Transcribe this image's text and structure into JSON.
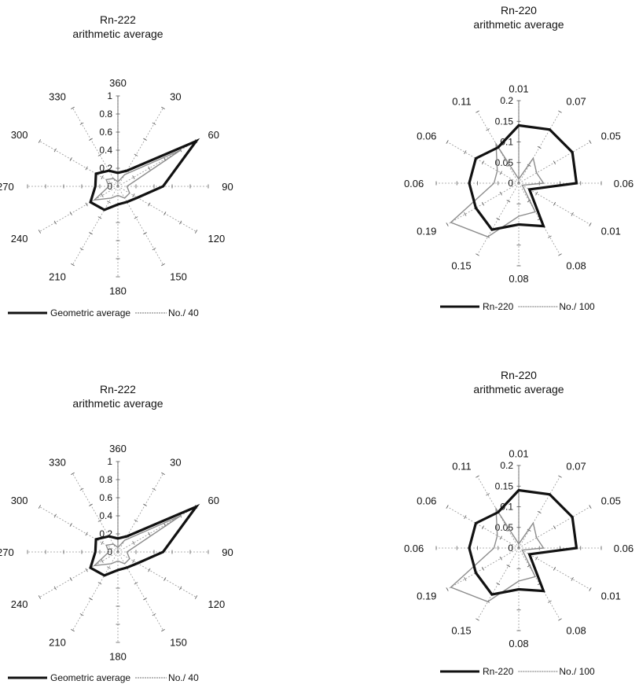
{
  "colors": {
    "primary_series": "#111111",
    "secondary_series": "#8c8c8c",
    "spokes": "#9a9a9a"
  },
  "chart_data": [
    {
      "type": "radar",
      "title_line1": "Rn-222",
      "title_line2": "arithmetic average",
      "categories": [
        "360",
        "30",
        "60",
        "90",
        "120",
        "150",
        "180",
        "210",
        "240",
        "270",
        "300",
        "330"
      ],
      "radial_ticks": [
        "0",
        "0.2",
        "0.4",
        "0.6",
        "0.8",
        "1"
      ],
      "rlim": [
        0,
        1
      ],
      "grid": false,
      "legend_position": "bottom",
      "series": [
        {
          "name": "Geometric average",
          "values": [
            0.15,
            0.2,
            1.0,
            0.5,
            0.25,
            0.2,
            0.2,
            0.3,
            0.35,
            0.25,
            0.28,
            0.2
          ]
        },
        {
          "name": "No./ 40",
          "values": [
            0.05,
            0.15,
            0.8,
            0.1,
            0.15,
            0.15,
            0.1,
            0.15,
            0.3,
            0.1,
            0.15,
            0.1
          ]
        }
      ]
    },
    {
      "type": "radar",
      "title_line1": "Rn-220",
      "title_line2": "arithmetic average",
      "categories": [
        "0.01",
        "0.07",
        "0.05",
        "0.06",
        "0.01",
        "0.08",
        "0.08",
        "0.15",
        "0.19",
        "0.06",
        "0.06",
        "0.11"
      ],
      "radial_ticks": [
        "0",
        "0.05",
        "0.1",
        "0.15",
        "0.2"
      ],
      "rlim": [
        0,
        0.2
      ],
      "grid": false,
      "legend_position": "bottom",
      "series": [
        {
          "name": "Rn-220",
          "values": [
            0.14,
            0.15,
            0.15,
            0.14,
            0.03,
            0.12,
            0.1,
            0.13,
            0.12,
            0.12,
            0.12,
            0.1
          ]
        },
        {
          "name": "No./ 100",
          "values": [
            0.01,
            0.07,
            0.05,
            0.06,
            0.01,
            0.08,
            0.08,
            0.15,
            0.19,
            0.06,
            0.06,
            0.11
          ]
        }
      ]
    },
    {
      "type": "radar",
      "title_line1": "Rn-222",
      "title_line2": "arithmetic average",
      "categories": [
        "360",
        "30",
        "60",
        "90",
        "120",
        "150",
        "180",
        "210",
        "240",
        "270",
        "300",
        "330"
      ],
      "radial_ticks": [
        "0",
        "0.2",
        "0.4",
        "0.6",
        "0.8",
        "1"
      ],
      "rlim": [
        0,
        1
      ],
      "grid": false,
      "legend_position": "bottom",
      "series": [
        {
          "name": "Geometric average",
          "values": [
            0.15,
            0.2,
            1.0,
            0.5,
            0.25,
            0.2,
            0.2,
            0.3,
            0.35,
            0.25,
            0.28,
            0.2
          ]
        },
        {
          "name": "No./ 40",
          "values": [
            0.05,
            0.15,
            0.8,
            0.1,
            0.15,
            0.15,
            0.1,
            0.15,
            0.3,
            0.1,
            0.15,
            0.1
          ]
        }
      ]
    },
    {
      "type": "radar",
      "title_line1": "Rn-220",
      "title_line2": "arithmetic average",
      "categories": [
        "0.01",
        "0.07",
        "0.05",
        "0.06",
        "0.01",
        "0.08",
        "0.08",
        "0.15",
        "0.19",
        "0.06",
        "0.06",
        "0.11"
      ],
      "radial_ticks": [
        "0",
        "0.05",
        "0.1",
        "0.15",
        "0.2"
      ],
      "rlim": [
        0,
        0.2
      ],
      "grid": false,
      "legend_position": "bottom",
      "series": [
        {
          "name": "Rn-220",
          "values": [
            0.14,
            0.15,
            0.15,
            0.14,
            0.03,
            0.12,
            0.1,
            0.13,
            0.12,
            0.12,
            0.12,
            0.1
          ]
        },
        {
          "name": "No./ 100",
          "values": [
            0.01,
            0.07,
            0.05,
            0.06,
            0.01,
            0.08,
            0.08,
            0.15,
            0.19,
            0.06,
            0.06,
            0.11
          ]
        }
      ]
    }
  ]
}
